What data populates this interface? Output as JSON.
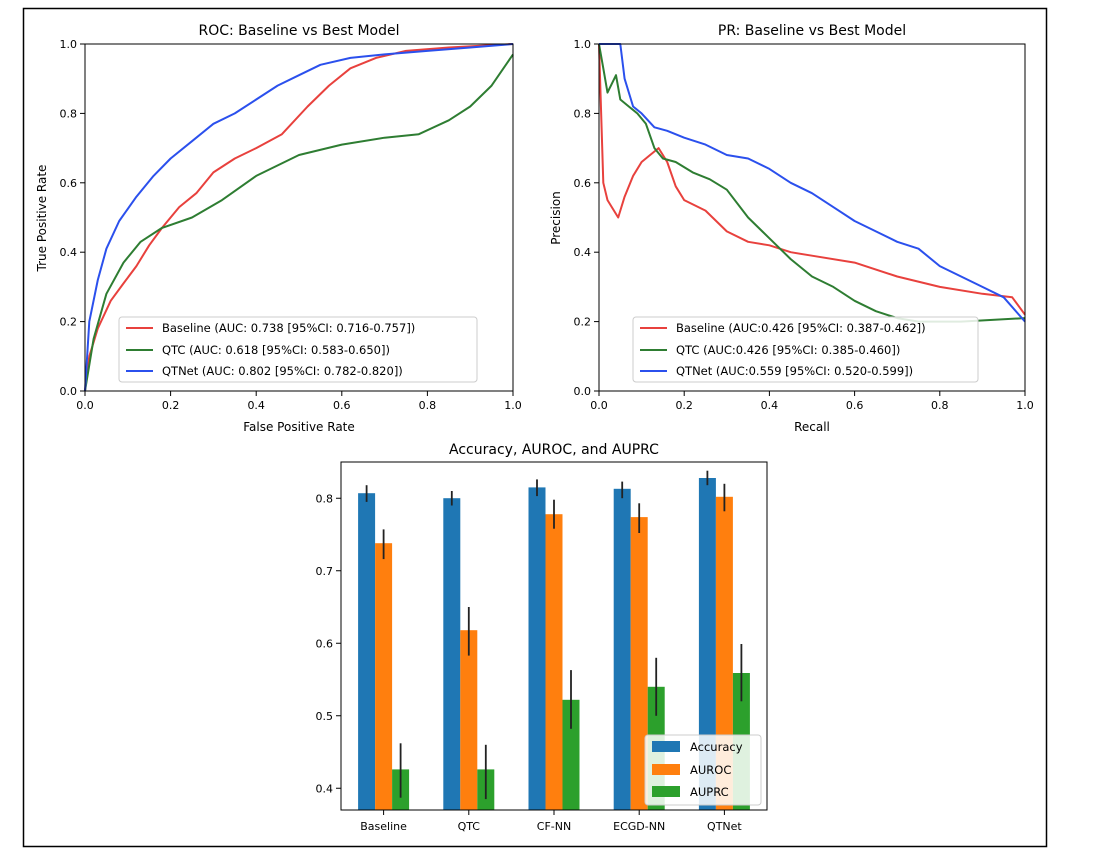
{
  "chart_data": [
    {
      "type": "line",
      "title": "ROC: Baseline vs Best Model",
      "xlabel": "False Positive Rate",
      "ylabel": "True Positive Rate",
      "xlim": [
        0,
        1
      ],
      "ylim": [
        0,
        1
      ],
      "xticks": [
        "0.0",
        "0.2",
        "0.4",
        "0.6",
        "0.8",
        "1.0"
      ],
      "yticks": [
        "0.0",
        "0.2",
        "0.4",
        "0.6",
        "0.8",
        "1.0"
      ],
      "grid": false,
      "legend_position": "lower-right",
      "series": [
        {
          "name": "Baseline (AUC: 0.738 [95%CI: 0.716-0.757])",
          "color": "#e8413d",
          "points": [
            [
              0,
              0
            ],
            [
              0.01,
              0.1
            ],
            [
              0.03,
              0.18
            ],
            [
              0.06,
              0.26
            ],
            [
              0.09,
              0.31
            ],
            [
              0.12,
              0.36
            ],
            [
              0.15,
              0.42
            ],
            [
              0.18,
              0.47
            ],
            [
              0.22,
              0.53
            ],
            [
              0.26,
              0.57
            ],
            [
              0.3,
              0.63
            ],
            [
              0.35,
              0.67
            ],
            [
              0.4,
              0.7
            ],
            [
              0.46,
              0.74
            ],
            [
              0.52,
              0.82
            ],
            [
              0.57,
              0.88
            ],
            [
              0.62,
              0.93
            ],
            [
              0.68,
              0.96
            ],
            [
              0.75,
              0.98
            ],
            [
              0.85,
              0.99
            ],
            [
              1,
              1
            ]
          ]
        },
        {
          "name": "QTC (AUC: 0.618 [95%CI: 0.583-0.650])",
          "color": "#2e7d32",
          "points": [
            [
              0,
              0
            ],
            [
              0.02,
              0.15
            ],
            [
              0.05,
              0.28
            ],
            [
              0.09,
              0.37
            ],
            [
              0.13,
              0.43
            ],
            [
              0.18,
              0.47
            ],
            [
              0.25,
              0.5
            ],
            [
              0.32,
              0.55
            ],
            [
              0.4,
              0.62
            ],
            [
              0.5,
              0.68
            ],
            [
              0.6,
              0.71
            ],
            [
              0.7,
              0.73
            ],
            [
              0.78,
              0.74
            ],
            [
              0.85,
              0.78
            ],
            [
              0.9,
              0.82
            ],
            [
              0.95,
              0.88
            ],
            [
              1,
              0.97
            ]
          ]
        },
        {
          "name": "QTNet (AUC: 0.802 [95%CI: 0.782-0.820])",
          "color": "#2b50ed",
          "points": [
            [
              0,
              0
            ],
            [
              0.01,
              0.2
            ],
            [
              0.03,
              0.32
            ],
            [
              0.05,
              0.41
            ],
            [
              0.08,
              0.49
            ],
            [
              0.12,
              0.56
            ],
            [
              0.16,
              0.62
            ],
            [
              0.2,
              0.67
            ],
            [
              0.25,
              0.72
            ],
            [
              0.3,
              0.77
            ],
            [
              0.35,
              0.8
            ],
            [
              0.4,
              0.84
            ],
            [
              0.45,
              0.88
            ],
            [
              0.5,
              0.91
            ],
            [
              0.55,
              0.94
            ],
            [
              0.62,
              0.96
            ],
            [
              0.7,
              0.97
            ],
            [
              0.8,
              0.98
            ],
            [
              0.9,
              0.99
            ],
            [
              1,
              1
            ]
          ]
        }
      ]
    },
    {
      "type": "line",
      "title": "PR: Baseline vs Best Model",
      "xlabel": "Recall",
      "ylabel": "Precision",
      "xlim": [
        0,
        1
      ],
      "ylim": [
        0,
        1
      ],
      "xticks": [
        "0.0",
        "0.2",
        "0.4",
        "0.6",
        "0.8",
        "1.0"
      ],
      "yticks": [
        "0.0",
        "0.2",
        "0.4",
        "0.6",
        "0.8",
        "1.0"
      ],
      "grid": false,
      "legend_position": "lower-right",
      "series": [
        {
          "name": "Baseline (AUC:0.426 [95%CI: 0.387-0.462])",
          "color": "#e8413d",
          "points": [
            [
              0,
              1
            ],
            [
              0.01,
              0.6
            ],
            [
              0.02,
              0.55
            ],
            [
              0.03,
              0.53
            ],
            [
              0.045,
              0.5
            ],
            [
              0.06,
              0.56
            ],
            [
              0.08,
              0.62
            ],
            [
              0.1,
              0.66
            ],
            [
              0.12,
              0.68
            ],
            [
              0.14,
              0.7
            ],
            [
              0.16,
              0.66
            ],
            [
              0.18,
              0.59
            ],
            [
              0.2,
              0.55
            ],
            [
              0.25,
              0.52
            ],
            [
              0.3,
              0.46
            ],
            [
              0.35,
              0.43
            ],
            [
              0.4,
              0.42
            ],
            [
              0.45,
              0.4
            ],
            [
              0.5,
              0.39
            ],
            [
              0.6,
              0.37
            ],
            [
              0.7,
              0.33
            ],
            [
              0.8,
              0.3
            ],
            [
              0.9,
              0.28
            ],
            [
              0.97,
              0.27
            ],
            [
              1,
              0.22
            ]
          ]
        },
        {
          "name": "QTC (AUC:0.426 [95%CI: 0.385-0.460])",
          "color": "#2e7d32",
          "points": [
            [
              0,
              1
            ],
            [
              0.01,
              0.93
            ],
            [
              0.02,
              0.86
            ],
            [
              0.04,
              0.91
            ],
            [
              0.05,
              0.84
            ],
            [
              0.07,
              0.82
            ],
            [
              0.09,
              0.8
            ],
            [
              0.11,
              0.77
            ],
            [
              0.13,
              0.7
            ],
            [
              0.15,
              0.67
            ],
            [
              0.18,
              0.66
            ],
            [
              0.22,
              0.63
            ],
            [
              0.26,
              0.61
            ],
            [
              0.3,
              0.58
            ],
            [
              0.35,
              0.5
            ],
            [
              0.4,
              0.44
            ],
            [
              0.45,
              0.38
            ],
            [
              0.5,
              0.33
            ],
            [
              0.55,
              0.3
            ],
            [
              0.6,
              0.26
            ],
            [
              0.65,
              0.23
            ],
            [
              0.7,
              0.21
            ],
            [
              0.75,
              0.2
            ],
            [
              0.85,
              0.2
            ],
            [
              1,
              0.21
            ]
          ]
        },
        {
          "name": "QTNet (AUC:0.559 [95%CI: 0.520-0.599])",
          "color": "#2b50ed",
          "points": [
            [
              0,
              1
            ],
            [
              0.03,
              1
            ],
            [
              0.05,
              1
            ],
            [
              0.06,
              0.9
            ],
            [
              0.08,
              0.82
            ],
            [
              0.1,
              0.8
            ],
            [
              0.13,
              0.76
            ],
            [
              0.16,
              0.75
            ],
            [
              0.2,
              0.73
            ],
            [
              0.25,
              0.71
            ],
            [
              0.3,
              0.68
            ],
            [
              0.35,
              0.67
            ],
            [
              0.4,
              0.64
            ],
            [
              0.45,
              0.6
            ],
            [
              0.5,
              0.57
            ],
            [
              0.55,
              0.53
            ],
            [
              0.6,
              0.49
            ],
            [
              0.65,
              0.46
            ],
            [
              0.7,
              0.43
            ],
            [
              0.75,
              0.41
            ],
            [
              0.8,
              0.36
            ],
            [
              0.85,
              0.33
            ],
            [
              0.9,
              0.3
            ],
            [
              0.95,
              0.27
            ],
            [
              1,
              0.2
            ]
          ]
        }
      ]
    },
    {
      "type": "bar",
      "title": "Accuracy, AUROC, and AUPRC",
      "categories": [
        "Baseline",
        "QTC",
        "CF-NN",
        "ECGD-NN",
        "QTNet"
      ],
      "ylim": [
        0.37,
        0.85
      ],
      "yticks": [
        "0.4",
        "0.5",
        "0.6",
        "0.7",
        "0.8"
      ],
      "grid": false,
      "legend_position": "lower-right",
      "series": [
        {
          "name": "Accuracy",
          "color": "#1f77b4",
          "values": [
            0.807,
            0.8,
            0.815,
            0.813,
            0.828
          ],
          "error_low": [
            0.795,
            0.79,
            0.803,
            0.8,
            0.818
          ],
          "error_high": [
            0.818,
            0.81,
            0.826,
            0.823,
            0.838
          ]
        },
        {
          "name": "AUROC",
          "color": "#ff7f0e",
          "values": [
            0.738,
            0.618,
            0.778,
            0.774,
            0.802
          ],
          "error_low": [
            0.716,
            0.583,
            0.758,
            0.752,
            0.782
          ],
          "error_high": [
            0.757,
            0.65,
            0.798,
            0.793,
            0.82
          ]
        },
        {
          "name": "AUPRC",
          "color": "#2ca02c",
          "values": [
            0.426,
            0.426,
            0.522,
            0.54,
            0.559
          ],
          "error_low": [
            0.387,
            0.385,
            0.482,
            0.5,
            0.52
          ],
          "error_high": [
            0.462,
            0.46,
            0.563,
            0.58,
            0.599
          ]
        }
      ]
    }
  ]
}
